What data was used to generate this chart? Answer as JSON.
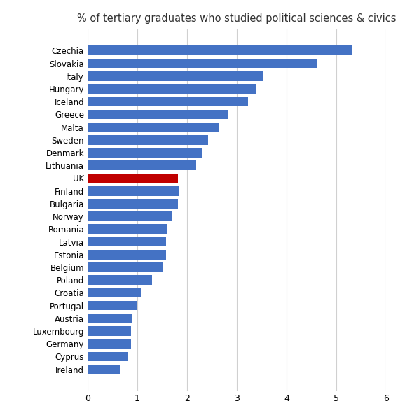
{
  "title": "% of tertiary graduates who studied political sciences & civics",
  "categories": [
    "Ireland",
    "Cyprus",
    "Germany",
    "Luxembourg",
    "Austria",
    "Portugal",
    "Croatia",
    "Poland",
    "Belgium",
    "Estonia",
    "Latvia",
    "Romania",
    "Norway",
    "Bulgaria",
    "Finland",
    "UK",
    "Lithuania",
    "Denmark",
    "Sweden",
    "Malta",
    "Greece",
    "Iceland",
    "Hungary",
    "Italy",
    "Slovakia",
    "Czechia"
  ],
  "values": [
    0.65,
    0.8,
    0.88,
    0.88,
    0.9,
    1.0,
    1.07,
    1.3,
    1.52,
    1.58,
    1.58,
    1.6,
    1.7,
    1.82,
    1.84,
    1.82,
    2.18,
    2.3,
    2.42,
    2.65,
    2.82,
    3.22,
    3.38,
    3.52,
    4.6,
    5.32
  ],
  "bar_colors": [
    "#4472C4",
    "#4472C4",
    "#4472C4",
    "#4472C4",
    "#4472C4",
    "#4472C4",
    "#4472C4",
    "#4472C4",
    "#4472C4",
    "#4472C4",
    "#4472C4",
    "#4472C4",
    "#4472C4",
    "#4472C4",
    "#4472C4",
    "#C00000",
    "#4472C4",
    "#4472C4",
    "#4472C4",
    "#4472C4",
    "#4472C4",
    "#4472C4",
    "#4472C4",
    "#4472C4",
    "#4472C4",
    "#4472C4"
  ],
  "xlim": [
    0,
    6
  ],
  "xticks": [
    0,
    1,
    2,
    3,
    4,
    5,
    6
  ],
  "background_color": "#FFFFFF",
  "grid_color": "#D0D0D0",
  "title_fontsize": 10.5,
  "bar_height": 0.75,
  "ylabel_fontsize": 8.5,
  "xlabel_fontsize": 9
}
